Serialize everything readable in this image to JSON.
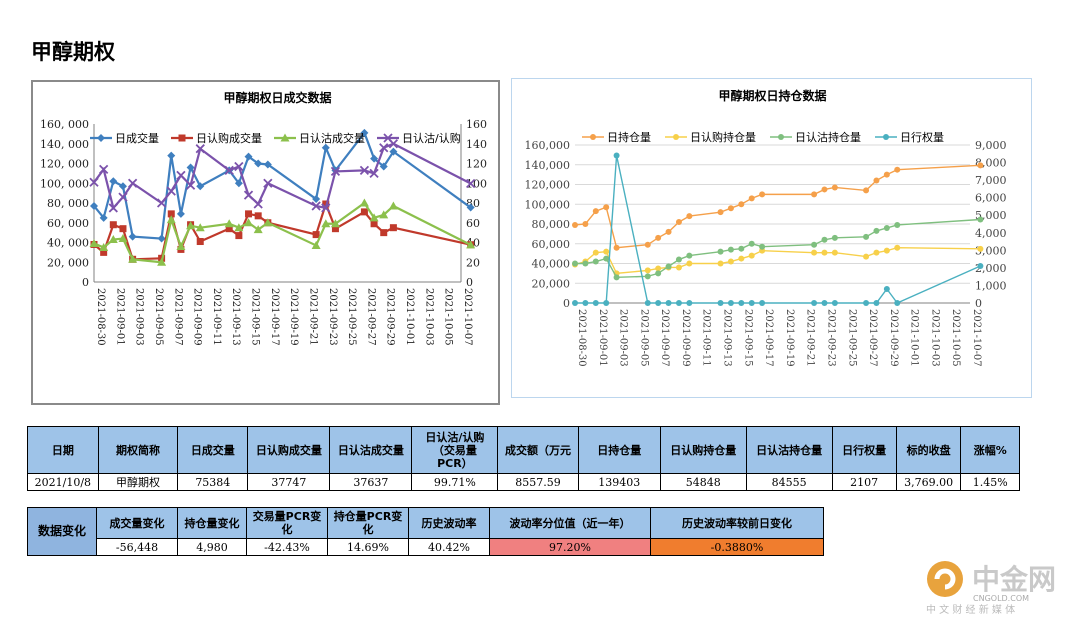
{
  "page": {
    "title": "甲醇期权"
  },
  "chart_data": [
    {
      "type": "line",
      "title": "甲醇期权日成交数据",
      "x": [
        "2021-08-30",
        "2021-08-31",
        "2021-09-01",
        "2021-09-02",
        "2021-09-03",
        "2021-09-06",
        "2021-09-07",
        "2021-09-08",
        "2021-09-09",
        "2021-09-10",
        "2021-09-13",
        "2021-09-14",
        "2021-09-15",
        "2021-09-16",
        "2021-09-17",
        "2021-09-22",
        "2021-09-23",
        "2021-09-24",
        "2021-09-27",
        "2021-09-28",
        "2021-09-29",
        "2021-09-30",
        "2021-10-08"
      ],
      "x_tick_labels": [
        "2021-08-30",
        "2021-09-01",
        "2021-09-03",
        "2021-09-05",
        "2021-09-07",
        "2021-09-09",
        "2021-09-11",
        "2021-09-13",
        "2021-09-15",
        "2021-09-17",
        "2021-09-19",
        "2021-09-21",
        "2021-09-23",
        "2021-09-25",
        "2021-09-27",
        "2021-09-29",
        "2021-10-01",
        "2021-10-03",
        "2021-10-05",
        "2021-10-07"
      ],
      "series": [
        {
          "name": "日成交量",
          "axis": "left",
          "color": "#3f7fbf",
          "marker": "diamond",
          "values": [
            77000,
            65000,
            102000,
            97000,
            46000,
            44000,
            128000,
            69000,
            116000,
            97000,
            113000,
            100000,
            127000,
            120000,
            119000,
            84000,
            136000,
            113000,
            151000,
            125000,
            117000,
            132000,
            75384
          ]
        },
        {
          "name": "日认购成交量",
          "axis": "left",
          "color": "#c0392b",
          "marker": "square",
          "values": [
            38000,
            30000,
            58000,
            54000,
            23000,
            24000,
            69000,
            33000,
            58000,
            41000,
            54000,
            47000,
            69000,
            67000,
            60000,
            48000,
            79000,
            54000,
            71000,
            59000,
            50000,
            55000,
            37747
          ]
        },
        {
          "name": "日认沽成交量",
          "axis": "left",
          "color": "#8cc04c",
          "marker": "triangle",
          "values": [
            39000,
            35000,
            43000,
            44000,
            23000,
            20000,
            63000,
            36000,
            57000,
            55000,
            59000,
            55000,
            60000,
            53000,
            60000,
            37000,
            59000,
            59000,
            80000,
            65000,
            68000,
            77000,
            37637
          ]
        },
        {
          "name": "日认沽/认购",
          "axis": "right",
          "color": "#7b52ab",
          "marker": "x",
          "values": [
            101,
            114,
            75,
            86,
            100,
            80,
            92,
            108,
            98,
            135,
            113,
            117,
            88,
            79,
            100,
            77,
            75,
            112,
            113,
            110,
            136,
            140,
            99.71
          ]
        }
      ],
      "ylim": [
        0,
        160000
      ],
      "y_tick_labels": [
        "0",
        "20, 000",
        "40, 000",
        "60, 000",
        "80, 000",
        "100, 000",
        "120, 000",
        "140, 000",
        "160, 000"
      ],
      "y2lim": [
        0,
        160
      ],
      "y2_tick_labels": [
        "0",
        "20",
        "40",
        "60",
        "80",
        "100",
        "120",
        "140",
        "160"
      ],
      "legend_position": "top"
    },
    {
      "type": "line",
      "title": "甲醇期权日持仓数据",
      "x": [
        "2021-08-30",
        "2021-08-31",
        "2021-09-01",
        "2021-09-02",
        "2021-09-03",
        "2021-09-06",
        "2021-09-07",
        "2021-09-08",
        "2021-09-09",
        "2021-09-10",
        "2021-09-13",
        "2021-09-14",
        "2021-09-15",
        "2021-09-16",
        "2021-09-17",
        "2021-09-22",
        "2021-09-23",
        "2021-09-24",
        "2021-09-27",
        "2021-09-28",
        "2021-09-29",
        "2021-09-30",
        "2021-10-08"
      ],
      "x_tick_labels": [
        "2021-08-30",
        "2021-09-01",
        "2021-09-03",
        "2021-09-05",
        "2021-09-07",
        "2021-09-09",
        "2021-09-11",
        "2021-09-13",
        "2021-09-15",
        "2021-09-17",
        "2021-09-19",
        "2021-09-21",
        "2021-09-23",
        "2021-09-25",
        "2021-09-27",
        "2021-09-29",
        "2021-10-01",
        "2021-10-03",
        "2021-10-05",
        "2021-10-07"
      ],
      "series": [
        {
          "name": "日持仓量",
          "axis": "left",
          "color": "#f5a04a",
          "values": [
            79000,
            80000,
            93000,
            97000,
            56000,
            59000,
            66000,
            72000,
            82000,
            88000,
            92000,
            96000,
            100000,
            106000,
            110000,
            110000,
            115000,
            117000,
            114000,
            124000,
            130000,
            135000,
            139403
          ]
        },
        {
          "name": "日认购持仓量",
          "axis": "left",
          "color": "#f7d04a",
          "values": [
            39000,
            42000,
            51000,
            52000,
            30000,
            33000,
            35000,
            36000,
            36000,
            40000,
            40000,
            42000,
            45000,
            48000,
            53000,
            51000,
            51000,
            51000,
            47000,
            51000,
            53000,
            56000,
            54848
          ]
        },
        {
          "name": "日认沽持仓量",
          "axis": "left",
          "color": "#7fbf7f",
          "values": [
            40000,
            40000,
            42000,
            45000,
            26000,
            27000,
            30000,
            37000,
            44000,
            48000,
            52000,
            54000,
            55000,
            60000,
            57000,
            59000,
            64000,
            66000,
            67000,
            73000,
            76000,
            79000,
            84555
          ]
        },
        {
          "name": "日行权量",
          "axis": "right",
          "color": "#4ab0c0",
          "values": [
            0,
            0,
            0,
            0,
            8400,
            0,
            0,
            0,
            0,
            0,
            0,
            0,
            0,
            0,
            0,
            0,
            0,
            0,
            0,
            0,
            800,
            0,
            2107
          ]
        }
      ],
      "ylim": [
        0,
        160000
      ],
      "y_tick_labels": [
        "0",
        "20,000",
        "40,000",
        "60,000",
        "80,000",
        "100,000",
        "120,000",
        "140,000",
        "160,000"
      ],
      "y2lim": [
        0,
        9000
      ],
      "y2_tick_labels": [
        "0",
        "1,000",
        "2,000",
        "3,000",
        "4,000",
        "5,000",
        "6,000",
        "7,000",
        "8,000",
        "9,000"
      ],
      "legend_position": "top"
    }
  ],
  "table1": {
    "headers": [
      "日期",
      "期权简称",
      "日成交量",
      "日认购成交量",
      "日认沽成交量",
      "日认沽/认购（交易量PCR）",
      "成交额（万元）",
      "日持仓量",
      "日认购持仓量",
      "日认沽持仓量",
      "日行权量",
      "标的收盘",
      "涨幅%"
    ],
    "header_lines": [
      [
        "日期"
      ],
      [
        "期权简称"
      ],
      [
        "日成交量"
      ],
      [
        "日认购成交量"
      ],
      [
        "日认沽成交量"
      ],
      [
        "日认沽/认购",
        "（交易量",
        "PCR）"
      ],
      [
        "成交额（万元"
      ],
      [
        "日持仓量"
      ],
      [
        "日认购持仓量"
      ],
      [
        "日认沽持仓量"
      ],
      [
        "日行权量"
      ],
      [
        "标的收盘"
      ],
      [
        "涨幅%"
      ]
    ],
    "row": [
      "2021/10/8",
      "甲醇期权",
      "75384",
      "37747",
      "37637",
      "99.71%",
      "8557.59",
      "139403",
      "54848",
      "84555",
      "2107",
      "3,769.00",
      "1.45%"
    ]
  },
  "table2": {
    "row_header": "数据变化",
    "headers": [
      "成交量变化",
      "持仓量变化",
      "交易量PCR变化",
      "持仓量PCR变化",
      "历史波动率",
      "波动率分位值（近一年）",
      "历史波动率较前日变化"
    ],
    "header_lines": [
      [
        "成交量变化"
      ],
      [
        "持仓量变化"
      ],
      [
        "交易量PCR变",
        "化"
      ],
      [
        "持仓量PCR变",
        "化"
      ],
      [
        "历史波动率"
      ],
      [
        "波动率分位值（近一年）"
      ],
      [
        "历史波动率较前日变化"
      ]
    ],
    "row": [
      "-56,448",
      "4,980",
      "-42.43%",
      "14.69%",
      "40.42%",
      "97.20%",
      "-0.3880%"
    ]
  },
  "logo": {
    "brand": "中金网",
    "domain": "CNGOLD.COM",
    "tagline": "中 文 财 经 新 媒 体"
  }
}
